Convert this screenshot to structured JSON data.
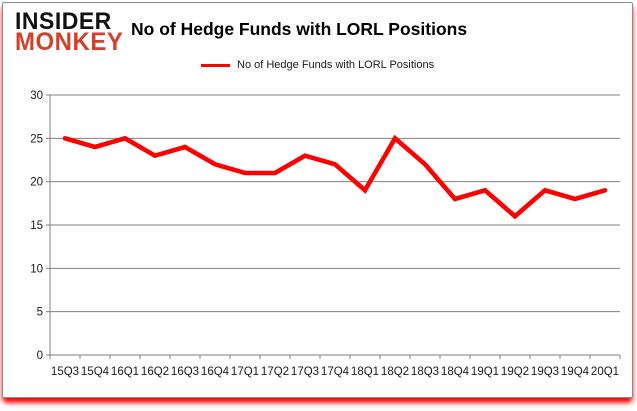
{
  "logo": {
    "top": "INSIDER",
    "bottom": "MONKEY"
  },
  "title": "No of Hedge Funds with LORL Positions",
  "legend": {
    "label": "No of Hedge Funds with LORL Positions"
  },
  "colors": {
    "line": "#fe0000",
    "grid": "#808080",
    "logo_red": "#d2422a",
    "text": "#000000"
  },
  "chart_data": {
    "type": "line",
    "title": "No of Hedge Funds with LORL Positions",
    "categories": [
      "15Q3",
      "15Q4",
      "16Q1",
      "16Q2",
      "16Q3",
      "16Q4",
      "17Q1",
      "17Q2",
      "17Q3",
      "17Q4",
      "18Q1",
      "18Q2",
      "18Q3",
      "18Q4",
      "19Q1",
      "19Q2",
      "19Q3",
      "19Q4",
      "20Q1"
    ],
    "series": [
      {
        "name": "No of Hedge Funds with LORL Positions",
        "values": [
          25,
          24,
          25,
          23,
          24,
          22,
          21,
          21,
          23,
          22,
          19,
          25,
          22,
          18,
          19,
          16,
          19,
          18,
          19
        ]
      }
    ],
    "xlabel": "",
    "ylabel": "",
    "ylim": [
      0,
      30
    ],
    "yticks": [
      0,
      5,
      10,
      15,
      20,
      25,
      30
    ],
    "grid": true,
    "legend_position": "top",
    "line_color": "#fe0000"
  }
}
